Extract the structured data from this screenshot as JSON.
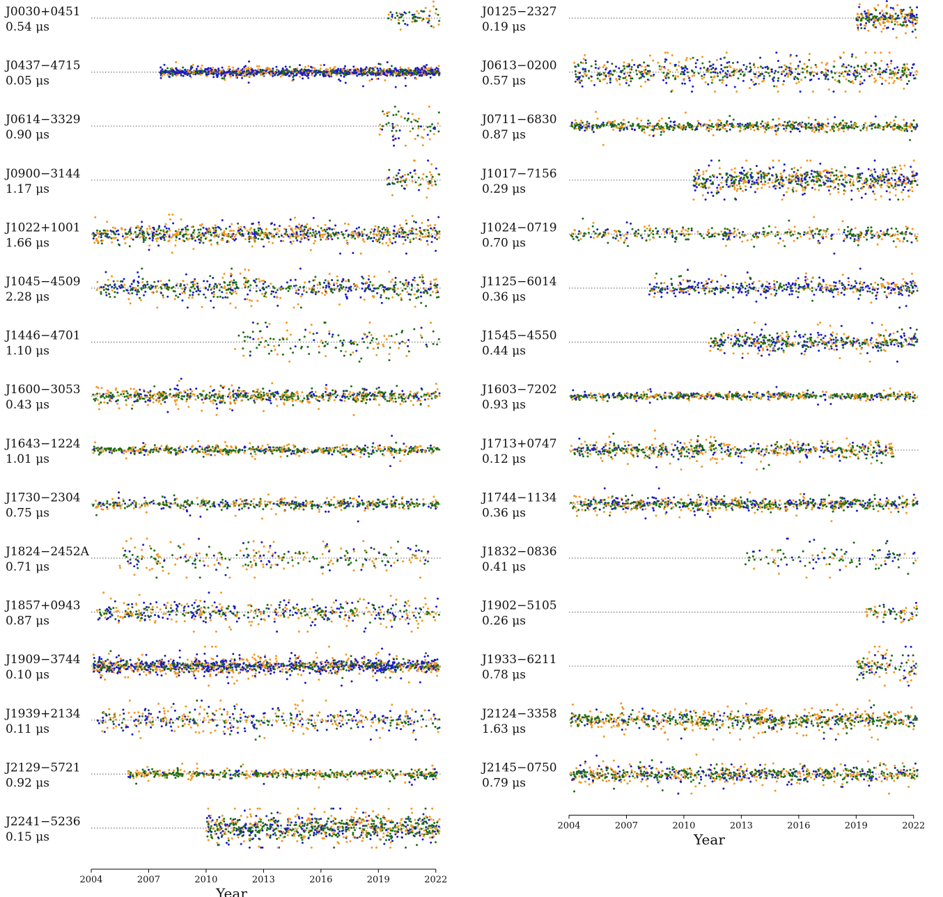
{
  "chart_data": {
    "type": "scatter",
    "title": "",
    "xlabel": "Year",
    "xlim": [
      2004,
      2022.3
    ],
    "xticks": [
      2004,
      2007,
      2010,
      2013,
      2016,
      2019,
      2022
    ],
    "colors": {
      "orange": "#f5961e",
      "blue": "#1a1ac8",
      "green": "#1e6e14",
      "zeroline": "#777777"
    },
    "panels": [
      {
        "column": "left",
        "pulsars": [
          {
            "name": "J0030+0451",
            "rms": "0.54 μs",
            "start": 2019.4,
            "end": 2022.2,
            "density": 0.8,
            "spread": 0.7,
            "mix": [
              0.35,
              0.25,
              0.4
            ]
          },
          {
            "name": "J0437−4715",
            "rms": "0.05 μs",
            "start": 2007.6,
            "end": 2022.2,
            "density": 3.0,
            "spread": 0.25,
            "mix": [
              0.25,
              0.55,
              0.2
            ]
          },
          {
            "name": "J0614−3329",
            "rms": "0.90 μs",
            "start": 2019.0,
            "end": 2022.2,
            "density": 0.8,
            "spread": 1.0,
            "mix": [
              0.35,
              0.15,
              0.5
            ]
          },
          {
            "name": "J0900−3144",
            "rms": "1.17 μs",
            "start": 2019.4,
            "end": 2022.2,
            "density": 0.9,
            "spread": 0.8,
            "mix": [
              0.35,
              0.2,
              0.45
            ]
          },
          {
            "name": "J1022+1001",
            "rms": "1.66 μs",
            "start": 2004.1,
            "end": 2022.2,
            "density": 1.6,
            "spread": 0.6,
            "mix": [
              0.4,
              0.25,
              0.35
            ]
          },
          {
            "name": "J1045−4509",
            "rms": "2.28 μs",
            "start": 2004.3,
            "end": 2022.2,
            "density": 1.2,
            "spread": 0.7,
            "mix": [
              0.3,
              0.3,
              0.4
            ]
          },
          {
            "name": "J1446−4701",
            "rms": "1.10 μs",
            "start": 2011.4,
            "end": 2022.2,
            "density": 0.5,
            "spread": 1.1,
            "mix": [
              0.3,
              0.15,
              0.55
            ]
          },
          {
            "name": "J1600−3053",
            "rms": "0.43 μs",
            "start": 2004.1,
            "end": 2022.2,
            "density": 1.4,
            "spread": 0.5,
            "mix": [
              0.35,
              0.2,
              0.45
            ]
          },
          {
            "name": "J1643−1224",
            "rms": "1.01 μs",
            "start": 2004.1,
            "end": 2022.2,
            "density": 1.2,
            "spread": 0.3,
            "mix": [
              0.35,
              0.15,
              0.5
            ]
          },
          {
            "name": "J1730−2304",
            "rms": "0.75 μs",
            "start": 2004.1,
            "end": 2022.2,
            "density": 1.0,
            "spread": 0.35,
            "mix": [
              0.3,
              0.2,
              0.5
            ]
          },
          {
            "name": "J1824−2452A",
            "rms": "0.71 μs",
            "start": 2005.4,
            "end": 2021.6,
            "density": 0.6,
            "spread": 0.9,
            "mix": [
              0.4,
              0.2,
              0.4
            ]
          },
          {
            "name": "J1857+0943",
            "rms": "0.87 μs",
            "start": 2004.3,
            "end": 2022.2,
            "density": 1.0,
            "spread": 0.7,
            "mix": [
              0.35,
              0.3,
              0.35
            ]
          },
          {
            "name": "J1909−3744",
            "rms": "0.10 μs",
            "start": 2004.1,
            "end": 2022.2,
            "density": 2.6,
            "spread": 0.45,
            "mix": [
              0.35,
              0.4,
              0.25
            ]
          },
          {
            "name": "J1939+2134",
            "rms": "0.11 μs",
            "start": 2004.3,
            "end": 2022.2,
            "density": 0.9,
            "spread": 0.8,
            "mix": [
              0.35,
              0.35,
              0.3
            ]
          },
          {
            "name": "J2129−5721",
            "rms": "0.92 μs",
            "start": 2005.9,
            "end": 2022.2,
            "density": 1.1,
            "spread": 0.3,
            "mix": [
              0.35,
              0.1,
              0.55
            ]
          },
          {
            "name": "J2241−5236",
            "rms": "0.15 μs",
            "start": 2010.0,
            "end": 2022.2,
            "density": 2.4,
            "spread": 0.9,
            "mix": [
              0.3,
              0.25,
              0.45
            ]
          }
        ]
      },
      {
        "column": "right",
        "pulsars": [
          {
            "name": "J0125−2327",
            "rms": "0.19 μs",
            "start": 2019.0,
            "end": 2022.2,
            "density": 2.5,
            "spread": 0.6,
            "mix": [
              0.4,
              0.25,
              0.35
            ]
          },
          {
            "name": "J0613−0200",
            "rms": "0.57 μs",
            "start": 2004.1,
            "end": 2022.2,
            "density": 1.3,
            "spread": 0.8,
            "mix": [
              0.3,
              0.35,
              0.35
            ]
          },
          {
            "name": "J0711−6830",
            "rms": "0.87 μs",
            "start": 2004.1,
            "end": 2022.2,
            "density": 1.2,
            "spread": 0.35,
            "mix": [
              0.35,
              0.15,
              0.5
            ]
          },
          {
            "name": "J1017−7156",
            "rms": "0.29 μs",
            "start": 2010.5,
            "end": 2022.2,
            "density": 2.0,
            "spread": 0.8,
            "mix": [
              0.35,
              0.3,
              0.35
            ]
          },
          {
            "name": "J1024−0719",
            "rms": "0.70 μs",
            "start": 2004.1,
            "end": 2022.2,
            "density": 0.8,
            "spread": 0.5,
            "mix": [
              0.3,
              0.2,
              0.5
            ]
          },
          {
            "name": "J1125−6014",
            "rms": "0.36 μs",
            "start": 2008.2,
            "end": 2022.2,
            "density": 1.2,
            "spread": 0.5,
            "mix": [
              0.25,
              0.5,
              0.25
            ]
          },
          {
            "name": "J1545−4550",
            "rms": "0.44 μs",
            "start": 2011.3,
            "end": 2022.2,
            "density": 1.5,
            "spread": 0.6,
            "mix": [
              0.25,
              0.35,
              0.4
            ]
          },
          {
            "name": "J1603−7202",
            "rms": "0.93 μs",
            "start": 2004.1,
            "end": 2022.2,
            "density": 1.1,
            "spread": 0.25,
            "mix": [
              0.3,
              0.2,
              0.5
            ]
          },
          {
            "name": "J1713+0747",
            "rms": "0.12 μs",
            "start": 2004.1,
            "end": 2021.0,
            "density": 1.3,
            "spread": 0.5,
            "mix": [
              0.4,
              0.2,
              0.4
            ]
          },
          {
            "name": "J1744−1134",
            "rms": "0.36 μs",
            "start": 2004.1,
            "end": 2022.2,
            "density": 1.4,
            "spread": 0.45,
            "mix": [
              0.3,
              0.25,
              0.45
            ]
          },
          {
            "name": "J1832−0836",
            "rms": "0.41 μs",
            "start": 2013.2,
            "end": 2022.2,
            "density": 0.45,
            "spread": 1.0,
            "mix": [
              0.2,
              0.3,
              0.5
            ]
          },
          {
            "name": "J1902−5105",
            "rms": "0.26 μs",
            "start": 2019.5,
            "end": 2022.2,
            "density": 0.8,
            "spread": 0.6,
            "mix": [
              0.4,
              0.15,
              0.45
            ]
          },
          {
            "name": "J1933−6211",
            "rms": "0.78 μs",
            "start": 2019.0,
            "end": 2022.2,
            "density": 1.3,
            "spread": 0.9,
            "mix": [
              0.35,
              0.2,
              0.45
            ]
          },
          {
            "name": "J2124−3358",
            "rms": "1.63 μs",
            "start": 2004.1,
            "end": 2022.2,
            "density": 1.5,
            "spread": 0.6,
            "mix": [
              0.4,
              0.15,
              0.45
            ]
          },
          {
            "name": "J2145−0750",
            "rms": "0.79 μs",
            "start": 2004.1,
            "end": 2022.2,
            "density": 1.5,
            "spread": 0.55,
            "mix": [
              0.35,
              0.2,
              0.45
            ]
          }
        ]
      }
    ]
  }
}
